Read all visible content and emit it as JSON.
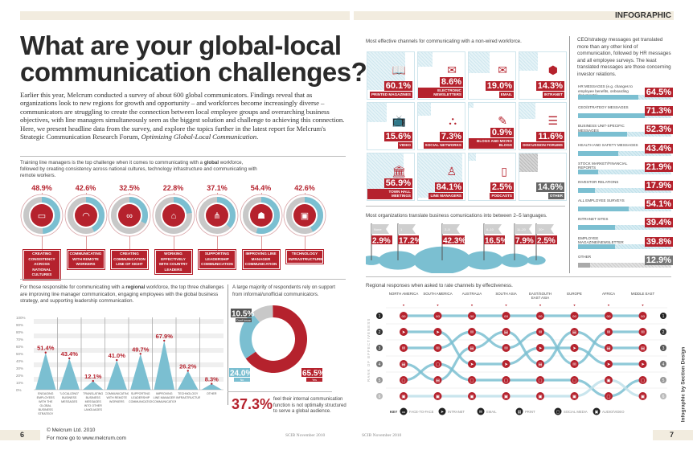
{
  "colors": {
    "red": "#b5222d",
    "blue": "#7bbfd1",
    "grey": "#c8c8c8",
    "dark": "#222"
  },
  "header": {
    "section": "INFOGRAPHIC"
  },
  "title": {
    "line1": "What are your global-local",
    "line2": "communication challenges?"
  },
  "intro": {
    "text": "Earlier this year, Melcrum conducted a survey of about 600 global communicators. Findings reveal that as organizations look to new regions for growth and opportunity – and workforces become increasingly diverse – communicators are struggling to create the connection between local employee groups and overarching business objectives, with line managers simultaneously seen as the biggest solution and challenge to achieving this connection. Here, we present headline data from the survey, and explore the topics further in the latest report for Melcrum's Strategic Communication Research Forum, ",
    "report": "Optimizing Global-Local Communication",
    "end": "."
  },
  "global": {
    "text_a": "Training line managers is the top challenge when it comes to communicating with a ",
    "text_bold": "global",
    "text_b": " workforce, followed by creating consistency across national cultures, technology infrastructure and communicating with remote workers.",
    "items": [
      {
        "pct": "48.9%",
        "value": 48.9,
        "label": "Creating consistency across national cultures",
        "icon": "meeting-table-icon",
        "glyph": "▭"
      },
      {
        "pct": "42.6%",
        "value": 42.6,
        "label": "Communicating with remote workers",
        "icon": "remote-table-icon",
        "glyph": "◠"
      },
      {
        "pct": "32.5%",
        "value": 32.5,
        "label": "Creating communication line of sight",
        "icon": "binoculars-icon",
        "glyph": "∞"
      },
      {
        "pct": "22.8%",
        "value": 22.8,
        "label": "Working effectively with country leaders",
        "icon": "government-building-icon",
        "glyph": "⌂"
      },
      {
        "pct": "37.1%",
        "value": 37.1,
        "label": "Supporting leadership communication",
        "icon": "org-chart-icon",
        "glyph": "⋔"
      },
      {
        "pct": "54.4%",
        "value": 54.4,
        "label": "Improving line manager communication",
        "icon": "people-icon",
        "glyph": "☗"
      },
      {
        "pct": "42.6%",
        "value": 42.6,
        "label": "Technology infrastructure",
        "icon": "microchip-icon",
        "glyph": "▣"
      }
    ]
  },
  "regional": {
    "text_a": "For those responsible for communicating with a ",
    "text_bold": "regional",
    "text_b": " workforce, the top three challenges are improving line manager communication, engaging employees with the global business strategy, and supporting leadership communication."
  },
  "chart_data": [
    {
      "type": "area",
      "title": "",
      "ylim": [
        0,
        100
      ],
      "yticks": [
        "0%",
        "10%",
        "20%",
        "30%",
        "40%",
        "50%",
        "60%",
        "70%",
        "80%",
        "90%",
        "100%"
      ],
      "categories": [
        "Engaging employees with the global business strategy",
        "\"Localizing\" business messages",
        "Translating business messages into other languages",
        "Communicating with remote workers",
        "Supporting leadership communication",
        "Improving line manager communication",
        "Technology infrastructure",
        "Other"
      ],
      "values": [
        51.4,
        43.4,
        12.1,
        41.0,
        49.7,
        67.9,
        26.2,
        8.3
      ],
      "labels": [
        "51.4%",
        "43.4%",
        "12.1%",
        "41.0%",
        "49.7%",
        "67.9%",
        "26.2%",
        "8.3%"
      ]
    },
    {
      "type": "pie",
      "title": "A large majority of respondents rely on support from informal/unofficial communicators.",
      "slices": [
        {
          "name": "Yes",
          "value": 65.5,
          "label": "65.5%",
          "color": "#b5222d"
        },
        {
          "name": "No",
          "value": 24.0,
          "label": "24.0%",
          "color": "#7bbfd1"
        },
        {
          "name": "Don't know",
          "value": 10.5,
          "label": "10.5%",
          "color": "#c8c8c8"
        }
      ]
    }
  ],
  "structure": {
    "pct": "37.3%",
    "text": "feel their internal communication function is not optimally structured to serve a global audience."
  },
  "channels": {
    "title": "Most effective channels for communicating with a non-wired workforce.",
    "items": [
      {
        "name": "Printed magazines",
        "pct": "60.1%",
        "value": 60.1,
        "icon": "book-icon",
        "glyph": "📖"
      },
      {
        "name": "Electronic newsletters",
        "pct": "8.6%",
        "value": 8.6,
        "icon": "newsletter-icon",
        "glyph": "✉"
      },
      {
        "name": "Email",
        "pct": "19.0%",
        "value": 19.0,
        "icon": "envelope-icon",
        "glyph": "✉"
      },
      {
        "name": "Intranet",
        "pct": "14.3%",
        "value": 14.3,
        "icon": "intranet-icon",
        "glyph": "⬢"
      },
      {
        "name": "Video",
        "pct": "15.6%",
        "value": 15.6,
        "icon": "tv-icon",
        "glyph": "📺"
      },
      {
        "name": "Social networks",
        "pct": "7.3%",
        "value": 7.3,
        "icon": "network-icon",
        "glyph": "⛬"
      },
      {
        "name": "Blogs and micro blogs",
        "pct": "0.9%",
        "value": 0.9,
        "icon": "blog-icon",
        "glyph": "✎"
      },
      {
        "name": "Discussion forums",
        "pct": "11.6%",
        "value": 11.6,
        "icon": "forum-icon",
        "glyph": "☰"
      },
      {
        "name": "Town hall meetings",
        "pct": "56.9%",
        "value": 56.9,
        "icon": "town-hall-icon",
        "glyph": "🏛"
      },
      {
        "name": "Line managers",
        "pct": "84.1%",
        "value": 84.1,
        "icon": "manager-icon",
        "glyph": "♙"
      },
      {
        "name": "Podcasts",
        "pct": "2.5%",
        "value": 2.5,
        "icon": "podcast-player-icon",
        "glyph": "▯"
      },
      {
        "name": "Other",
        "pct": "14.6%",
        "value": 14.6,
        "icon": "",
        "glyph": "",
        "grey": true
      }
    ]
  },
  "languages": {
    "title": "Most organizations translate business comunications into between 2–5 languages.",
    "items": [
      {
        "name": "None",
        "pct": "2.9%",
        "value": 2.9
      },
      {
        "name": "1",
        "pct": "17.2%",
        "value": 17.2
      },
      {
        "name": "2–5",
        "pct": "42.3%",
        "value": 42.3
      },
      {
        "name": "6–10",
        "pct": "16.5%",
        "value": 16.5
      },
      {
        "name": "11–20",
        "pct": "7.9%",
        "value": 7.9
      },
      {
        "name": "20+",
        "pct": "2.5%",
        "value": 2.5
      }
    ]
  },
  "translated": {
    "text": "CEO/strategy messages get translated more than any other kind of communication, followed by HR messages and all employee surveys. The least translated messages are those concerning investor relations.",
    "items": [
      {
        "name": "HR messages",
        "note": "(e.g. changes to employee benefits, onboarding documents)",
        "pct": "64.5%",
        "value": 64.5
      },
      {
        "name": "CEO/strategy messages",
        "note": "",
        "pct": "71.3%",
        "value": 71.3
      },
      {
        "name": "Business unit-specific messages",
        "note": "",
        "pct": "52.3%",
        "value": 52.3
      },
      {
        "name": "Health and safety messages",
        "note": "",
        "pct": "43.4%",
        "value": 43.4
      },
      {
        "name": "Stock market/financial reports",
        "note": "",
        "pct": "21.9%",
        "value": 21.9
      },
      {
        "name": "Investor relations",
        "note": "",
        "pct": "17.9%",
        "value": 17.9
      },
      {
        "name": "All employee surveys",
        "note": "",
        "pct": "54.1%",
        "value": 54.1
      },
      {
        "name": "Intranet sites",
        "note": "",
        "pct": "39.4%",
        "value": 39.4
      },
      {
        "name": "Employee magazine/newsletter",
        "note": "",
        "pct": "39.8%",
        "value": 39.8
      },
      {
        "name": "Other",
        "note": "",
        "pct": "12.9%",
        "value": 12.9,
        "grey": true
      }
    ]
  },
  "regions": {
    "title": "Regional responses when asked to rate channels by effectiveness.",
    "axis_label": "RANK OF EFFECTIVENESS",
    "ranks": [
      "1",
      "2",
      "3",
      "4",
      "5",
      "6"
    ],
    "columns": [
      "North America",
      "South America",
      "Australia",
      "South Asia",
      "East/South East Asia",
      "Europe",
      "Africa",
      "Middle East"
    ],
    "rankings": [
      [
        "face-to-face",
        "intranet",
        "email",
        "print",
        "social-media",
        "audio-video"
      ],
      [
        "face-to-face",
        "intranet",
        "email",
        "social-media",
        "print",
        "audio-video"
      ],
      [
        "face-to-face",
        "email",
        "print",
        "intranet",
        "social-media",
        "audio-video"
      ],
      [
        "face-to-face",
        "print",
        "email",
        "intranet",
        "social-media",
        "audio-video"
      ],
      [
        "face-to-face",
        "email",
        "intranet",
        "print",
        "social-media",
        "audio-video"
      ],
      [
        "face-to-face",
        "print",
        "intranet",
        "email",
        "social-media",
        "audio-video"
      ],
      [
        "face-to-face",
        "email",
        "print",
        "intranet",
        "audio-video",
        "social-media"
      ],
      [
        "face-to-face",
        "email",
        "print",
        "intranet",
        "social-media",
        "audio-video"
      ]
    ],
    "key_label": "KEY",
    "key": [
      {
        "id": "face-to-face",
        "label": "Face-to-face",
        "glyph": "oo"
      },
      {
        "id": "intranet",
        "label": "Intranet",
        "glyph": "➤"
      },
      {
        "id": "email",
        "label": "Email",
        "glyph": "✉"
      },
      {
        "id": "print",
        "label": "Print",
        "glyph": "▤"
      },
      {
        "id": "social-media",
        "label": "Social media",
        "glyph": "▢"
      },
      {
        "id": "audio-video",
        "label": "Audio/video",
        "glyph": "▣"
      }
    ]
  },
  "credit": "Infographic by Section Design",
  "footer": {
    "left_page": "6",
    "copyright": "© Melcrum Ltd. 2010",
    "more": "For more go to www.melcrum.com",
    "issue_left": "SCIB November 2010",
    "issue_right": "SCIB November 2010",
    "right_page": "7"
  }
}
